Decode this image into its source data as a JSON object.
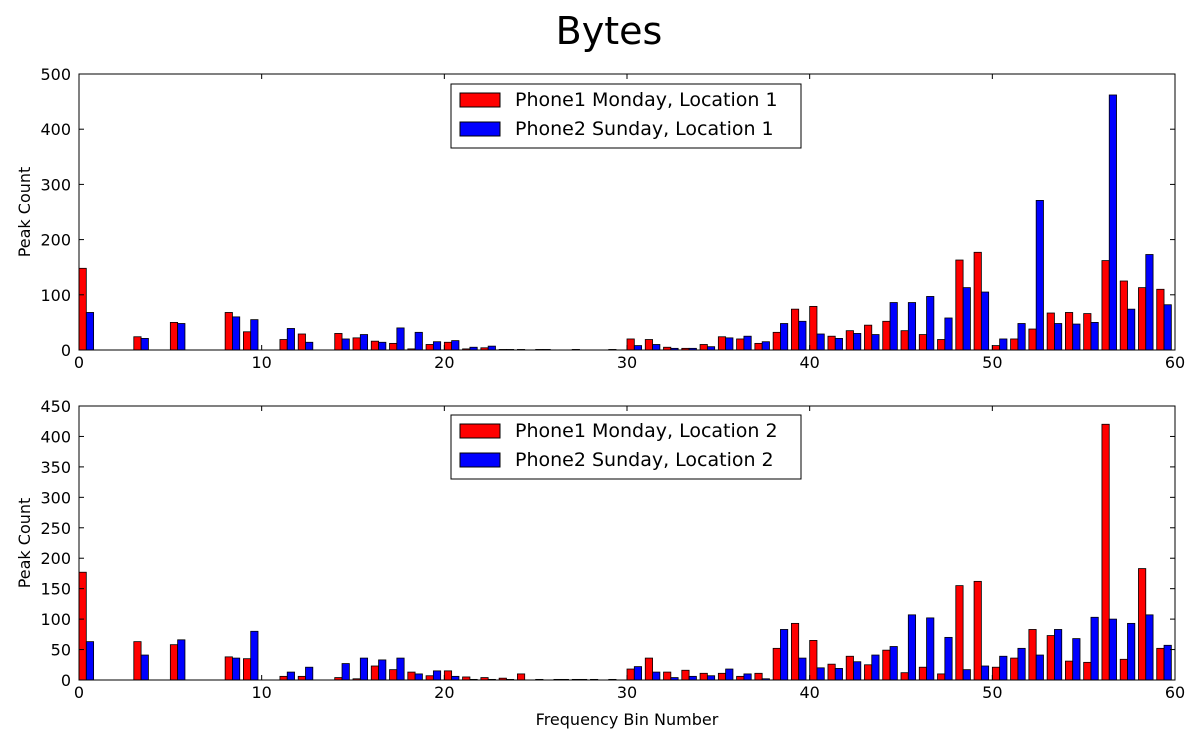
{
  "title": "Bytes",
  "chart_data": [
    {
      "type": "bar",
      "ylabel": "Peak Count",
      "xlabel": "",
      "xlim": [
        0,
        60
      ],
      "ylim": [
        0,
        500
      ],
      "xticks": [
        "0",
        "10",
        "20",
        "30",
        "40",
        "50",
        "60"
      ],
      "yticks": [
        "0",
        "100",
        "200",
        "300",
        "400",
        "500"
      ],
      "legend_position": "top-center",
      "bins": [
        0,
        1,
        2,
        3,
        4,
        5,
        6,
        7,
        8,
        9,
        10,
        11,
        12,
        13,
        14,
        15,
        16,
        17,
        18,
        19,
        20,
        21,
        22,
        23,
        24,
        25,
        26,
        27,
        28,
        29,
        30,
        31,
        32,
        33,
        34,
        35,
        36,
        37,
        38,
        39,
        40,
        41,
        42,
        43,
        44,
        45,
        46,
        47,
        48,
        49,
        50,
        51,
        52,
        53,
        54,
        55,
        56,
        57,
        58,
        59
      ],
      "series": [
        {
          "name": "Phone1 Monday, Location 1",
          "color": "#ff0000",
          "values": [
            148,
            0,
            0,
            24,
            0,
            50,
            0,
            0,
            68,
            33,
            0,
            19,
            29,
            0,
            30,
            22,
            16,
            12,
            2,
            10,
            14,
            2,
            4,
            1,
            1,
            1,
            0,
            1,
            0,
            1,
            20,
            19,
            5,
            3,
            10,
            24,
            20,
            12,
            32,
            74,
            79,
            25,
            35,
            45,
            52,
            35,
            28,
            19,
            163,
            177,
            8,
            20,
            38,
            67,
            68,
            66,
            162,
            125,
            113,
            110
          ]
        },
        {
          "name": "Phone2 Sunday, Location 1",
          "color": "#0000ff",
          "values": [
            68,
            0,
            0,
            21,
            0,
            48,
            0,
            0,
            60,
            55,
            0,
            39,
            14,
            0,
            20,
            28,
            14,
            40,
            32,
            15,
            17,
            5,
            7,
            1,
            0,
            1,
            0,
            0,
            0,
            0,
            8,
            10,
            3,
            3,
            6,
            22,
            25,
            15,
            48,
            52,
            29,
            21,
            30,
            28,
            86,
            86,
            97,
            58,
            113,
            105,
            20,
            48,
            271,
            48,
            47,
            50,
            462,
            74,
            173,
            82
          ]
        }
      ]
    },
    {
      "type": "bar",
      "ylabel": "Peak Count",
      "xlabel": "Frequency Bin Number",
      "xlim": [
        0,
        60
      ],
      "ylim": [
        0,
        450
      ],
      "xticks": [
        "0",
        "10",
        "20",
        "30",
        "40",
        "50",
        "60"
      ],
      "yticks": [
        "0",
        "50",
        "100",
        "150",
        "200",
        "250",
        "300",
        "350",
        "400",
        "450"
      ],
      "legend_position": "top-center",
      "bins": [
        0,
        1,
        2,
        3,
        4,
        5,
        6,
        7,
        8,
        9,
        10,
        11,
        12,
        13,
        14,
        15,
        16,
        17,
        18,
        19,
        20,
        21,
        22,
        23,
        24,
        25,
        26,
        27,
        28,
        29,
        30,
        31,
        32,
        33,
        34,
        35,
        36,
        37,
        38,
        39,
        40,
        41,
        42,
        43,
        44,
        45,
        46,
        47,
        48,
        49,
        50,
        51,
        52,
        53,
        54,
        55,
        56,
        57,
        58,
        59
      ],
      "series": [
        {
          "name": "Phone1 Monday, Location 2",
          "color": "#ff0000",
          "values": [
            177,
            0,
            0,
            63,
            0,
            58,
            0,
            0,
            38,
            35,
            0,
            6,
            6,
            0,
            4,
            2,
            23,
            17,
            13,
            7,
            15,
            5,
            4,
            3,
            10,
            1,
            1,
            1,
            1,
            1,
            18,
            36,
            13,
            16,
            11,
            11,
            6,
            11,
            52,
            93,
            65,
            26,
            39,
            25,
            49,
            12,
            21,
            10,
            155,
            162,
            21,
            36,
            83,
            73,
            31,
            29,
            420,
            34,
            183,
            52
          ]
        },
        {
          "name": "Phone2 Sunday, Location 2",
          "color": "#0000ff",
          "values": [
            63,
            0,
            0,
            41,
            0,
            66,
            0,
            0,
            36,
            80,
            0,
            13,
            21,
            0,
            27,
            36,
            33,
            36,
            10,
            15,
            6,
            1,
            1,
            1,
            0,
            0,
            1,
            1,
            0,
            0,
            22,
            13,
            4,
            6,
            7,
            18,
            10,
            2,
            83,
            36,
            20,
            19,
            30,
            41,
            55,
            107,
            102,
            70,
            17,
            23,
            39,
            52,
            41,
            83,
            68,
            103,
            100,
            93,
            107,
            57
          ]
        }
      ]
    }
  ]
}
